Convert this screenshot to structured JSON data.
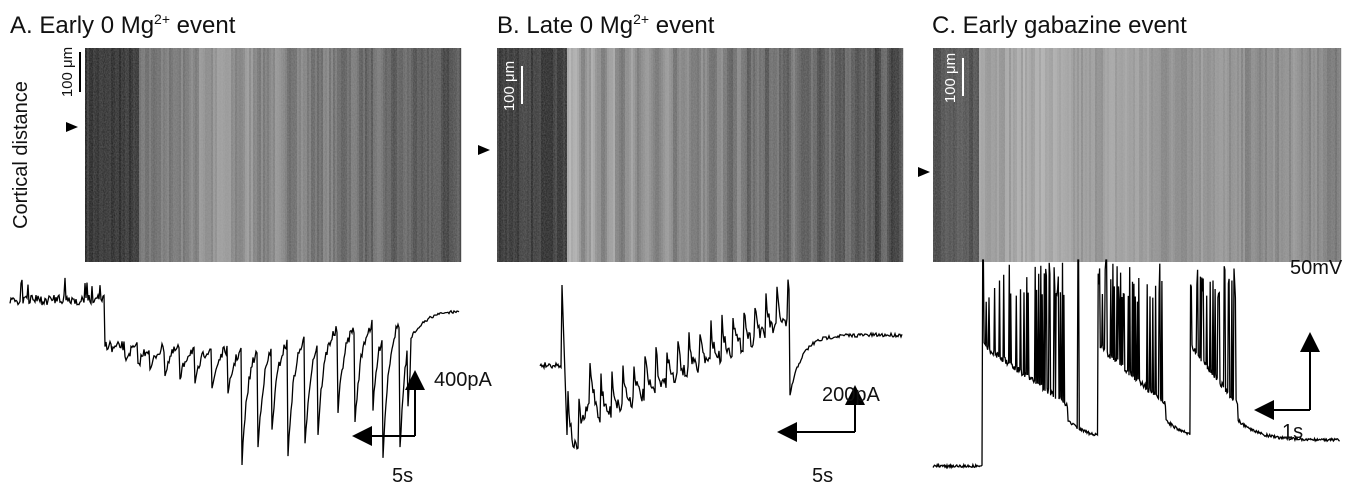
{
  "y_axis_label": "Cortical distance",
  "panels": [
    {
      "title": {
        "text": "A. Early 0 Mg",
        "sup": "2+",
        "after": " event"
      },
      "scale_bar": "100 μm",
      "amplitude_scale": "400pA",
      "time_scale": "5s"
    },
    {
      "title": {
        "text": "B. Late 0 Mg",
        "sup": "2+",
        "after": " event"
      },
      "scale_bar": "100 μm",
      "amplitude_scale": "200pA",
      "time_scale": "5s"
    },
    {
      "title": {
        "text": "C. Early gabazine event"
      },
      "scale_bar": "100 μm",
      "amplitude_scale": "50mV",
      "time_scale": "1s"
    }
  ]
}
